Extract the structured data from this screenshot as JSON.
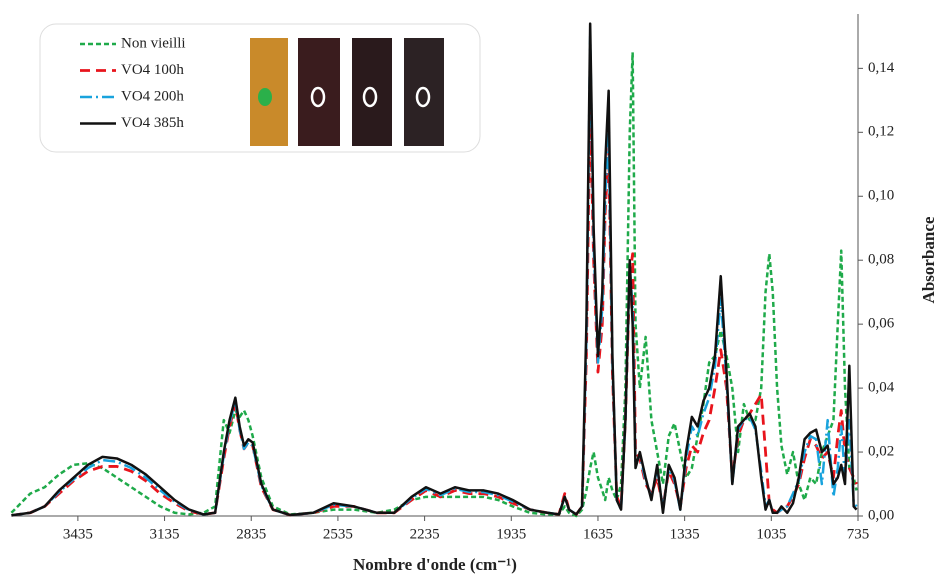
{
  "chart_data": {
    "type": "line",
    "x_label": "Nombre d'onde (cm⁻¹)",
    "y_label": "Absorbance",
    "x": [
      3665,
      3600,
      3550,
      3500,
      3450,
      3400,
      3350,
      3300,
      3250,
      3200,
      3150,
      3100,
      3050,
      3000,
      2960,
      2930,
      2910,
      2890,
      2875,
      2860,
      2845,
      2830,
      2800,
      2760,
      2700,
      2620,
      2550,
      2480,
      2400,
      2340,
      2280,
      2230,
      2180,
      2130,
      2080,
      2030,
      1980,
      1930,
      1870,
      1810,
      1770,
      1750,
      1735,
      1710,
      1690,
      1675,
      1662,
      1650,
      1635,
      1620,
      1610,
      1598,
      1585,
      1570,
      1555,
      1540,
      1525,
      1515,
      1505,
      1490,
      1470,
      1450,
      1430,
      1410,
      1390,
      1370,
      1350,
      1330,
      1310,
      1290,
      1270,
      1250,
      1230,
      1210,
      1190,
      1170,
      1150,
      1130,
      1110,
      1090,
      1070,
      1055,
      1042,
      1030,
      1015,
      1000,
      980,
      960,
      940,
      920,
      900,
      880,
      860,
      840,
      820,
      805,
      793,
      780,
      765,
      750,
      740
    ],
    "series": [
      {
        "name": "Non vieilli",
        "color": "#1faa4a",
        "dash": "dashed",
        "values": [
          0.001,
          0.007,
          0.009,
          0.013,
          0.016,
          0.0165,
          0.015,
          0.012,
          0.009,
          0.006,
          0.003,
          0.001,
          0.0005,
          0.001,
          0.003,
          0.03,
          0.026,
          0.033,
          0.031,
          0.033,
          0.03,
          0.025,
          0.012,
          0.003,
          0.0005,
          0.001,
          0.002,
          0.002,
          0.001,
          0.002,
          0.005,
          0.006,
          0.006,
          0.006,
          0.006,
          0.006,
          0.005,
          0.003,
          0.001,
          0.0005,
          0.0005,
          0.003,
          0.001,
          0,
          0.002,
          0.008,
          0.015,
          0.02,
          0.012,
          0.008,
          0.005,
          0.012,
          0.008,
          0.005,
          0.01,
          0.04,
          0.12,
          0.145,
          0.06,
          0.04,
          0.056,
          0.03,
          0.02,
          0.01,
          0.025,
          0.029,
          0.02,
          0.012,
          0.015,
          0.025,
          0.035,
          0.048,
          0.05,
          0.058,
          0.05,
          0.04,
          0.02,
          0.035,
          0.03,
          0.03,
          0.04,
          0.07,
          0.082,
          0.07,
          0.04,
          0.022,
          0.013,
          0.02,
          0.01,
          0.005,
          0.012,
          0.01,
          0.02,
          0.025,
          0.03,
          0.06,
          0.083,
          0.04,
          0.015,
          0.012,
          0.008
        ]
      },
      {
        "name": "VO4 100h",
        "color": "#e8141c",
        "dash": "longdash",
        "values": [
          0.0002,
          0.001,
          0.003,
          0.007,
          0.011,
          0.014,
          0.0155,
          0.0155,
          0.014,
          0.011,
          0.007,
          0.004,
          0.0015,
          0.0005,
          0.001,
          0.018,
          0.028,
          0.035,
          0.027,
          0.021,
          0.023,
          0.022,
          0.009,
          0.002,
          0.0003,
          0.001,
          0.003,
          0.003,
          0.001,
          0.001,
          0.005,
          0.008,
          0.006,
          0.008,
          0.007,
          0.007,
          0.006,
          0.004,
          0.002,
          0.001,
          0.0005,
          0.007,
          0.002,
          0.0005,
          0.003,
          0.05,
          0.13,
          0.08,
          0.045,
          0.06,
          0.095,
          0.115,
          0.045,
          0.006,
          0.003,
          0.03,
          0.075,
          0.082,
          0.02,
          0.018,
          0.01,
          0.007,
          0.012,
          0.003,
          0.014,
          0.01,
          0.003,
          0.015,
          0.022,
          0.02,
          0.026,
          0.03,
          0.04,
          0.052,
          0.04,
          0.012,
          0.025,
          0.03,
          0.032,
          0.035,
          0.038,
          0.02,
          0.004,
          0.002,
          0.001,
          0.002,
          0.003,
          0.006,
          0.01,
          0.018,
          0.024,
          0.022,
          0.018,
          0.02,
          0.012,
          0.025,
          0.033,
          0.02,
          0.015,
          0.012,
          0.01
        ]
      },
      {
        "name": "VO4 200h",
        "color": "#19a3dd",
        "dash": "dashdot",
        "values": [
          0.0002,
          0.001,
          0.003,
          0.0075,
          0.0115,
          0.015,
          0.0175,
          0.017,
          0.015,
          0.012,
          0.008,
          0.0045,
          0.0018,
          0.0005,
          0.001,
          0.019,
          0.029,
          0.036,
          0.027,
          0.021,
          0.023,
          0.022,
          0.0095,
          0.002,
          0.0003,
          0.001,
          0.0035,
          0.003,
          0.001,
          0.001,
          0.0055,
          0.0085,
          0.0065,
          0.0085,
          0.0075,
          0.0075,
          0.0065,
          0.0045,
          0.002,
          0.001,
          0.0005,
          0.006,
          0.002,
          0.0005,
          0.003,
          0.055,
          0.15,
          0.085,
          0.048,
          0.065,
          0.1,
          0.12,
          0.048,
          0.005,
          0.002,
          0.03,
          0.078,
          0.065,
          0.016,
          0.019,
          0.011,
          0.006,
          0.015,
          0.002,
          0.015,
          0.011,
          0.002,
          0.018,
          0.028,
          0.025,
          0.032,
          0.037,
          0.047,
          0.068,
          0.043,
          0.01,
          0.027,
          0.03,
          0.031,
          0.027,
          0.014,
          0.003,
          0.005,
          0.001,
          0.001,
          0.002,
          0.003,
          0.007,
          0.011,
          0.02,
          0.025,
          0.024,
          0.01,
          0.03,
          0.006,
          0.015,
          0.028,
          0.012,
          0.03,
          0.004,
          0.003
        ]
      },
      {
        "name": "VO4 385h",
        "color": "#111111",
        "dash": "solid",
        "values": [
          0.0002,
          0.001,
          0.003,
          0.008,
          0.012,
          0.016,
          0.0185,
          0.018,
          0.016,
          0.013,
          0.009,
          0.005,
          0.002,
          0.0005,
          0.001,
          0.02,
          0.03,
          0.037,
          0.028,
          0.022,
          0.024,
          0.023,
          0.01,
          0.002,
          0.0003,
          0.001,
          0.004,
          0.003,
          0.001,
          0.001,
          0.006,
          0.009,
          0.007,
          0.009,
          0.008,
          0.008,
          0.007,
          0.005,
          0.002,
          0.001,
          0.0005,
          0.006,
          0.002,
          0.0005,
          0.003,
          0.06,
          0.154,
          0.09,
          0.05,
          0.07,
          0.11,
          0.133,
          0.05,
          0.005,
          0.002,
          0.03,
          0.08,
          0.06,
          0.015,
          0.02,
          0.012,
          0.005,
          0.016,
          0.001,
          0.016,
          0.012,
          0.002,
          0.02,
          0.031,
          0.028,
          0.036,
          0.04,
          0.05,
          0.075,
          0.045,
          0.01,
          0.028,
          0.03,
          0.032,
          0.028,
          0.012,
          0.002,
          0.005,
          0.001,
          0.001,
          0.003,
          0.001,
          0.004,
          0.012,
          0.024,
          0.026,
          0.027,
          0.02,
          0.022,
          0.01,
          0.012,
          0.016,
          0.01,
          0.047,
          0.003,
          0.002
        ]
      }
    ],
    "xlim": [
      3663,
      735
    ],
    "xticks": [
      3435,
      3135,
      2835,
      2535,
      2235,
      1935,
      1635,
      1335,
      1035,
      735
    ],
    "ylim": [
      0,
      0.157
    ],
    "yticks": [
      {
        "value": 0,
        "label": "0,00"
      },
      {
        "value": 0.02,
        "label": "0,02"
      },
      {
        "value": 0.04,
        "label": "0,04"
      },
      {
        "value": 0.06,
        "label": "0,06"
      },
      {
        "value": 0.08,
        "label": "0,08"
      },
      {
        "value": 0.1,
        "label": "0,10"
      },
      {
        "value": 0.12,
        "label": "0,12"
      },
      {
        "value": 0.14,
        "label": "0,14"
      }
    ],
    "y_axis_side": "right"
  }
}
